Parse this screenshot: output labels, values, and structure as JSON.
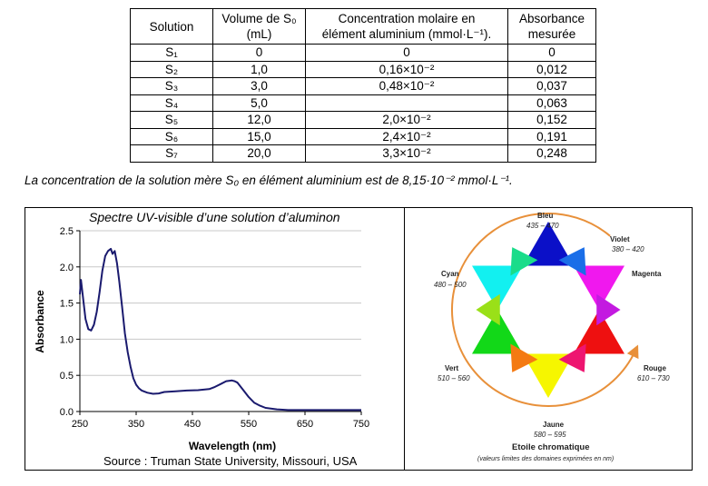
{
  "table": {
    "headers": [
      "Solution",
      [
        "Volume de S₀",
        "(mL)"
      ],
      [
        "Concentration molaire en",
        "élément aluminium (mmol·L⁻¹)."
      ],
      [
        "Absorbance",
        "mesurée"
      ]
    ],
    "rows": [
      [
        "S₁",
        "0",
        "0",
        "0"
      ],
      [
        "S₂",
        "1,0",
        "0,16×10⁻²",
        "0,012"
      ],
      [
        "S₃",
        "3,0",
        "0,48×10⁻²",
        "0,037"
      ],
      [
        "S₄",
        "5,0",
        "",
        "0,063"
      ],
      [
        "S₅",
        "12,0",
        "2,0×10⁻²",
        "0,152"
      ],
      [
        "S₆",
        "15,0",
        "2,4×10⁻²",
        "0,191"
      ],
      [
        "S₇",
        "20,0",
        "3,3×10⁻²",
        "0,248"
      ]
    ]
  },
  "note": "La concentration de la solution mère S₀ en élément aluminium est de 8,15·10⁻² mmol·L⁻¹.",
  "chart_data": {
    "type": "line",
    "title": "Spectre UV-visible d’une solution d’aluminon",
    "xlabel": "Wavelength (nm)",
    "ylabel": "Absorbance",
    "xlim": [
      250,
      750
    ],
    "ylim": [
      0,
      2.5
    ],
    "xticks": [
      "250",
      "350",
      "450",
      "550",
      "650",
      "750"
    ],
    "yticks": [
      "0.0",
      "0.5",
      "1.0",
      "1.5",
      "2.0",
      "2.5"
    ],
    "grid": "horizontal",
    "series": [
      {
        "color": "#1a1a6e",
        "x": [
          250,
          252,
          256,
          260,
          265,
          270,
          275,
          280,
          285,
          290,
          295,
          300,
          305,
          308,
          312,
          316,
          320,
          325,
          330,
          335,
          340,
          345,
          350,
          355,
          360,
          370,
          380,
          390,
          400,
          420,
          440,
          460,
          480,
          490,
          500,
          510,
          520,
          525,
          530,
          540,
          550,
          560,
          570,
          580,
          600,
          620,
          650,
          700,
          750
        ],
        "y": [
          1.62,
          1.82,
          1.55,
          1.28,
          1.14,
          1.12,
          1.2,
          1.38,
          1.65,
          1.95,
          2.15,
          2.22,
          2.25,
          2.18,
          2.22,
          2.05,
          1.8,
          1.45,
          1.08,
          0.82,
          0.62,
          0.46,
          0.37,
          0.32,
          0.29,
          0.26,
          0.245,
          0.25,
          0.27,
          0.28,
          0.29,
          0.295,
          0.31,
          0.34,
          0.38,
          0.42,
          0.43,
          0.42,
          0.4,
          0.3,
          0.2,
          0.12,
          0.08,
          0.05,
          0.03,
          0.02,
          0.02,
          0.02,
          0.02
        ]
      }
    ]
  },
  "source": "Source : Truman State University, Missouri, USA",
  "star": {
    "title": "Etoile chromatique",
    "caption": "(valeurs limites des domaines exprimées en nm)",
    "colors": [
      {
        "name": "Bleu",
        "range": "435 – 470",
        "hex": "#0b10c8"
      },
      {
        "name": "Violet",
        "range": "380 – 420",
        "hex": "#8a10e8"
      },
      {
        "name": "Magenta",
        "range": "",
        "hex": "#f018ee"
      },
      {
        "name": "Rouge",
        "range": "610 – 730",
        "hex": "#ee1010"
      },
      {
        "name": "Jaune",
        "range": "580 – 595",
        "hex": "#f6f600"
      },
      {
        "name": "Vert",
        "range": "510 – 560",
        "hex": "#12d818"
      },
      {
        "name": "Cyan",
        "range": "480 – 500",
        "hex": "#12f0f0"
      }
    ],
    "mids": [
      "#1a6ee8",
      "#c31ae0",
      "#ee1570",
      "#f47a12",
      "#9ae018",
      "#1adc8a"
    ],
    "arc_color": "#e8903a"
  }
}
